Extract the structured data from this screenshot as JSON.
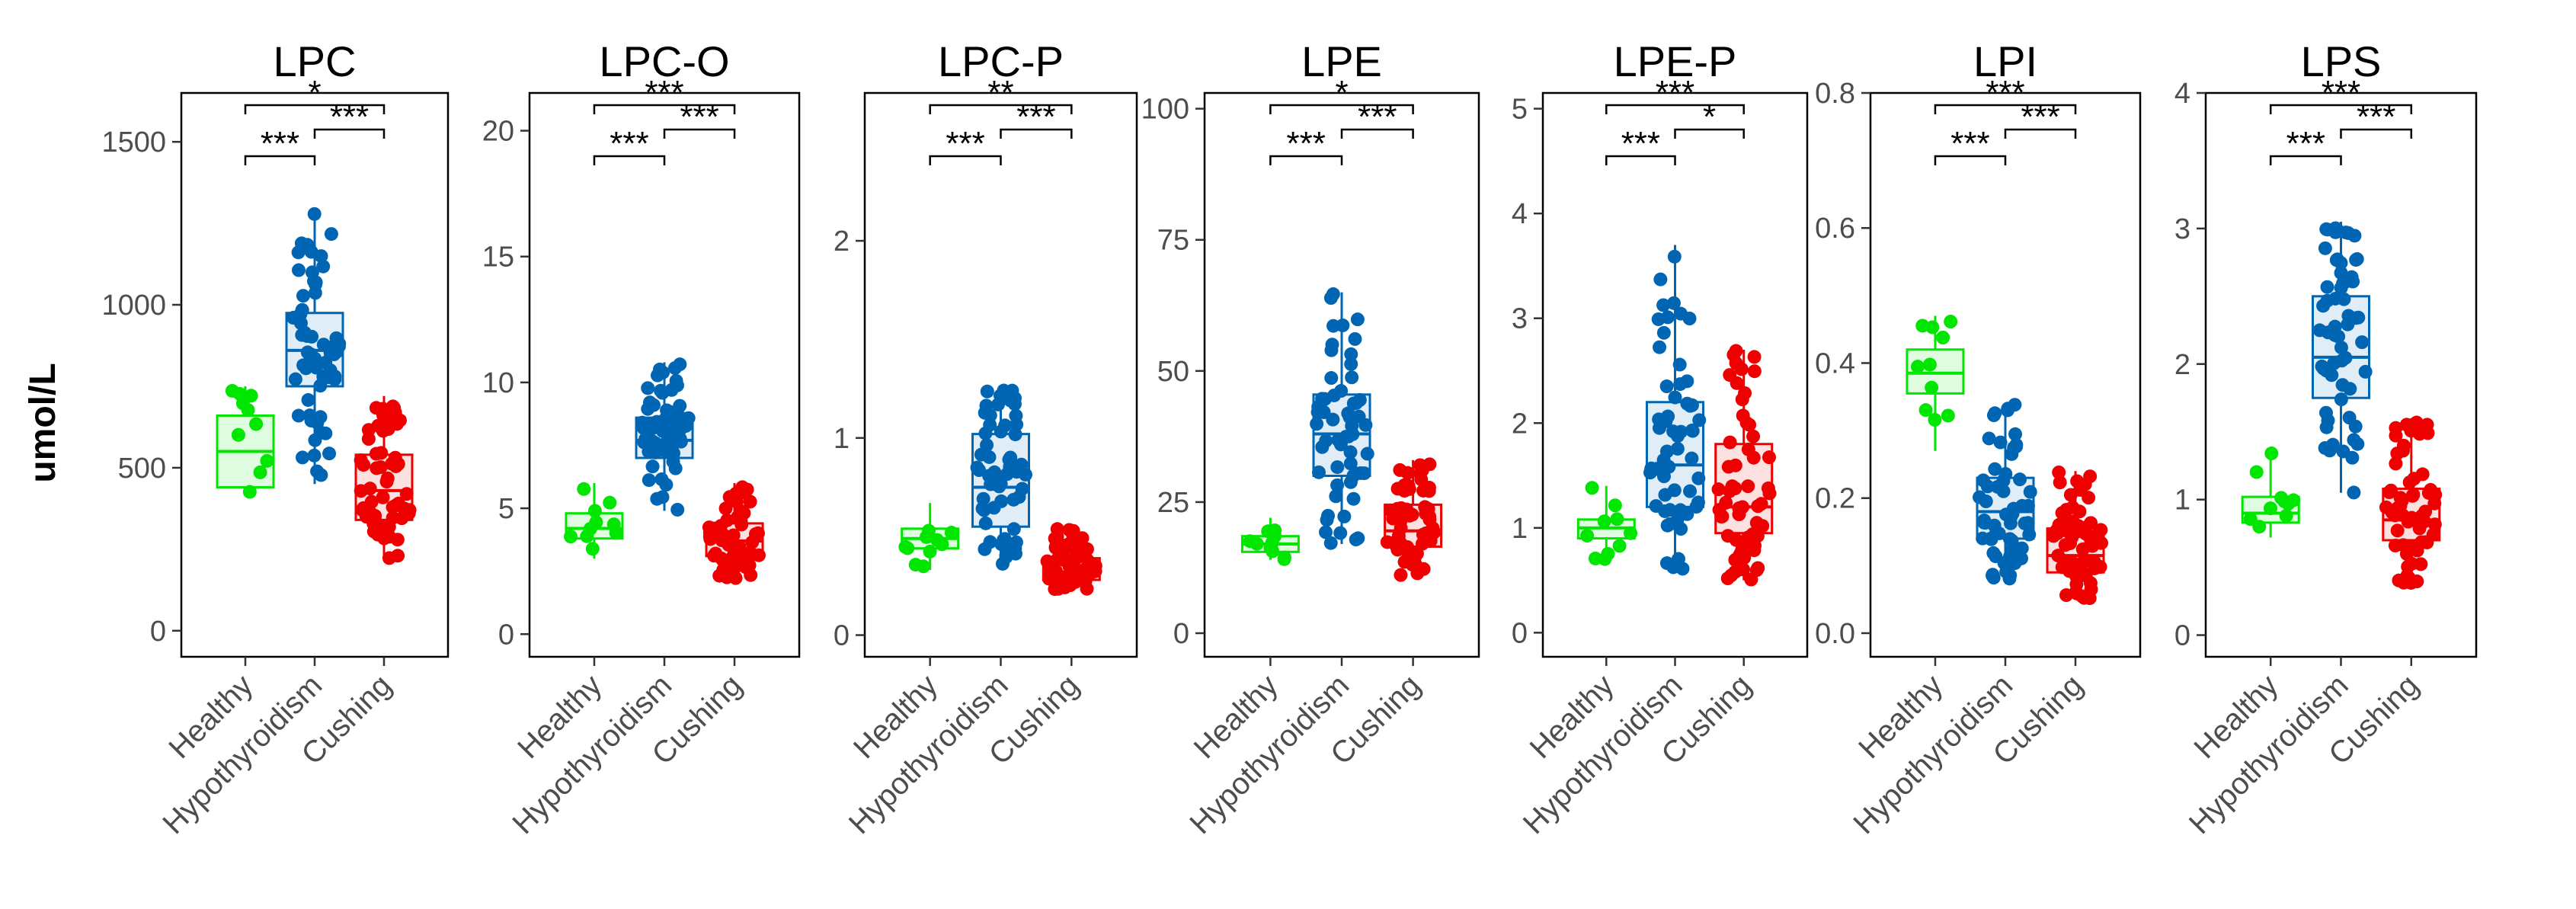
{
  "figure": {
    "ylabel": "umol/L",
    "groups": [
      "Healthy",
      "Hypothyroidism",
      "Cushing"
    ],
    "group_colors": {
      "Healthy": "#00e600",
      "Hypothyroidism": "#0066b3",
      "Cushing": "#ee0000"
    }
  },
  "chart_data": [
    {
      "type": "box",
      "title": "LPC",
      "ylim": [
        -80,
        1650
      ],
      "yticks": [
        0,
        500,
        1000,
        1500
      ],
      "tick_labels": [
        "0",
        "500",
        "1000",
        "1500"
      ],
      "categories": [
        "Healthy",
        "Hypothyroidism",
        "Cushing"
      ],
      "boxes": [
        {
          "group": "Healthy",
          "q1": 440,
          "median": 550,
          "q3": 660,
          "whisker_low": 420,
          "whisker_high": 750,
          "n": 10
        },
        {
          "group": "Hypothyroidism",
          "q1": 750,
          "median": 860,
          "q3": 975,
          "whisker_low": 450,
          "whisker_high": 1280,
          "n": 60
        },
        {
          "group": "Cushing",
          "q1": 340,
          "median": 430,
          "q3": 540,
          "whisker_low": 220,
          "whisker_high": 720,
          "n": 60
        }
      ],
      "comparisons": [
        {
          "from": "Healthy",
          "to": "Hypothyroidism",
          "label": "***"
        },
        {
          "from": "Hypothyroidism",
          "to": "Cushing",
          "label": "***"
        },
        {
          "from": "Healthy",
          "to": "Cushing",
          "label": "*"
        }
      ]
    },
    {
      "type": "box",
      "title": "LPC-O",
      "ylim": [
        -0.9,
        21.5
      ],
      "yticks": [
        0,
        5,
        10,
        15,
        20
      ],
      "tick_labels": [
        "0",
        "5",
        "10",
        "15",
        "20"
      ],
      "categories": [
        "Healthy",
        "Hypothyroidism",
        "Cushing"
      ],
      "boxes": [
        {
          "group": "Healthy",
          "q1": 3.8,
          "median": 4.2,
          "q3": 4.8,
          "whisker_low": 3.0,
          "whisker_high": 6.0,
          "n": 10
        },
        {
          "group": "Hypothyroidism",
          "q1": 7.0,
          "median": 7.7,
          "q3": 8.6,
          "whisker_low": 4.9,
          "whisker_high": 10.8,
          "n": 60
        },
        {
          "group": "Cushing",
          "q1": 3.1,
          "median": 3.7,
          "q3": 4.4,
          "whisker_low": 2.2,
          "whisker_high": 6.0,
          "n": 60
        }
      ],
      "comparisons": [
        {
          "from": "Healthy",
          "to": "Hypothyroidism",
          "label": "***"
        },
        {
          "from": "Hypothyroidism",
          "to": "Cushing",
          "label": "***"
        },
        {
          "from": "Healthy",
          "to": "Cushing",
          "label": "***"
        }
      ]
    },
    {
      "type": "box",
      "title": "LPC-P",
      "ylim": [
        -0.11,
        2.75
      ],
      "yticks": [
        0,
        1,
        2
      ],
      "tick_labels": [
        "0",
        "1",
        "2"
      ],
      "categories": [
        "Healthy",
        "Hypothyroidism",
        "Cushing"
      ],
      "boxes": [
        {
          "group": "Healthy",
          "q1": 0.44,
          "median": 0.49,
          "q3": 0.54,
          "whisker_low": 0.33,
          "whisker_high": 0.67,
          "n": 10
        },
        {
          "group": "Hypothyroidism",
          "q1": 0.55,
          "median": 0.75,
          "q3": 1.02,
          "whisker_low": 0.36,
          "whisker_high": 1.25,
          "n": 60
        },
        {
          "group": "Cushing",
          "q1": 0.28,
          "median": 0.32,
          "q3": 0.39,
          "whisker_low": 0.22,
          "whisker_high": 0.55,
          "n": 60
        }
      ],
      "comparisons": [
        {
          "from": "Healthy",
          "to": "Hypothyroidism",
          "label": "***"
        },
        {
          "from": "Hypothyroidism",
          "to": "Cushing",
          "label": "***"
        },
        {
          "from": "Healthy",
          "to": "Cushing",
          "label": "**"
        }
      ]
    },
    {
      "type": "box",
      "title": "LPE",
      "ylim": [
        -4.5,
        103
      ],
      "yticks": [
        0,
        25,
        50,
        75,
        100
      ],
      "tick_labels": [
        "0",
        "25",
        "50",
        "75",
        "100"
      ],
      "categories": [
        "Healthy",
        "Hypothyroidism",
        "Cushing"
      ],
      "boxes": [
        {
          "group": "Healthy",
          "q1": 15.5,
          "median": 17,
          "q3": 18.5,
          "whisker_low": 14,
          "whisker_high": 22,
          "n": 10
        },
        {
          "group": "Hypothyroidism",
          "q1": 30,
          "median": 38,
          "q3": 45.5,
          "whisker_low": 17,
          "whisker_high": 65,
          "n": 60
        },
        {
          "group": "Cushing",
          "q1": 16.5,
          "median": 19.5,
          "q3": 24.5,
          "whisker_low": 11,
          "whisker_high": 33,
          "n": 60
        }
      ],
      "comparisons": [
        {
          "from": "Healthy",
          "to": "Hypothyroidism",
          "label": "***"
        },
        {
          "from": "Hypothyroidism",
          "to": "Cushing",
          "label": "***"
        },
        {
          "from": "Healthy",
          "to": "Cushing",
          "label": "*"
        }
      ]
    },
    {
      "type": "box",
      "title": "LPE-P",
      "ylim": [
        -0.23,
        5.15
      ],
      "yticks": [
        0,
        1,
        2,
        3,
        4,
        5
      ],
      "tick_labels": [
        "0",
        "1",
        "2",
        "3",
        "4",
        "5"
      ],
      "categories": [
        "Healthy",
        "Hypothyroidism",
        "Cushing"
      ],
      "boxes": [
        {
          "group": "Healthy",
          "q1": 0.9,
          "median": 1.0,
          "q3": 1.08,
          "whisker_low": 0.7,
          "whisker_high": 1.4,
          "n": 10
        },
        {
          "group": "Hypothyroidism",
          "q1": 1.2,
          "median": 1.6,
          "q3": 2.2,
          "whisker_low": 0.6,
          "whisker_high": 3.7,
          "n": 60
        },
        {
          "group": "Cushing",
          "q1": 0.95,
          "median": 1.2,
          "q3": 1.8,
          "whisker_low": 0.5,
          "whisker_high": 2.7,
          "n": 60
        }
      ],
      "comparisons": [
        {
          "from": "Healthy",
          "to": "Hypothyroidism",
          "label": "***"
        },
        {
          "from": "Hypothyroidism",
          "to": "Cushing",
          "label": "*"
        },
        {
          "from": "Healthy",
          "to": "Cushing",
          "label": "***"
        }
      ]
    },
    {
      "type": "box",
      "title": "LPI",
      "ylim": [
        -0.035,
        0.8
      ],
      "yticks": [
        0.0,
        0.2,
        0.4,
        0.6,
        0.8
      ],
      "tick_labels": [
        "0.0",
        "0.2",
        "0.4",
        "0.6",
        "0.8"
      ],
      "categories": [
        "Healthy",
        "Hypothyroidism",
        "Cushing"
      ],
      "boxes": [
        {
          "group": "Healthy",
          "q1": 0.355,
          "median": 0.385,
          "q3": 0.42,
          "whisker_low": 0.27,
          "whisker_high": 0.47,
          "n": 10
        },
        {
          "group": "Hypothyroidism",
          "q1": 0.14,
          "median": 0.18,
          "q3": 0.23,
          "whisker_low": 0.08,
          "whisker_high": 0.34,
          "n": 60
        },
        {
          "group": "Cushing",
          "q1": 0.09,
          "median": 0.115,
          "q3": 0.155,
          "whisker_low": 0.05,
          "whisker_high": 0.24,
          "n": 60
        }
      ],
      "comparisons": [
        {
          "from": "Healthy",
          "to": "Hypothyroidism",
          "label": "***"
        },
        {
          "from": "Hypothyroidism",
          "to": "Cushing",
          "label": "***"
        },
        {
          "from": "Healthy",
          "to": "Cushing",
          "label": "***"
        }
      ]
    },
    {
      "type": "box",
      "title": "LPS",
      "ylim": [
        -0.16,
        4.0
      ],
      "yticks": [
        0,
        1,
        2,
        3,
        4
      ],
      "tick_labels": [
        "0",
        "1",
        "2",
        "3",
        "4"
      ],
      "categories": [
        "Healthy",
        "Hypothyroidism",
        "Cushing"
      ],
      "boxes": [
        {
          "group": "Healthy",
          "q1": 0.83,
          "median": 0.9,
          "q3": 1.02,
          "whisker_low": 0.72,
          "whisker_high": 1.35,
          "n": 10
        },
        {
          "group": "Hypothyroidism",
          "q1": 1.75,
          "median": 2.05,
          "q3": 2.5,
          "whisker_low": 1.05,
          "whisker_high": 3.05,
          "n": 60
        },
        {
          "group": "Cushing",
          "q1": 0.7,
          "median": 0.85,
          "q3": 1.08,
          "whisker_low": 0.38,
          "whisker_high": 1.6,
          "n": 60
        }
      ],
      "comparisons": [
        {
          "from": "Healthy",
          "to": "Hypothyroidism",
          "label": "***"
        },
        {
          "from": "Hypothyroidism",
          "to": "Cushing",
          "label": "***"
        },
        {
          "from": "Healthy",
          "to": "Cushing",
          "label": "***"
        }
      ]
    }
  ]
}
